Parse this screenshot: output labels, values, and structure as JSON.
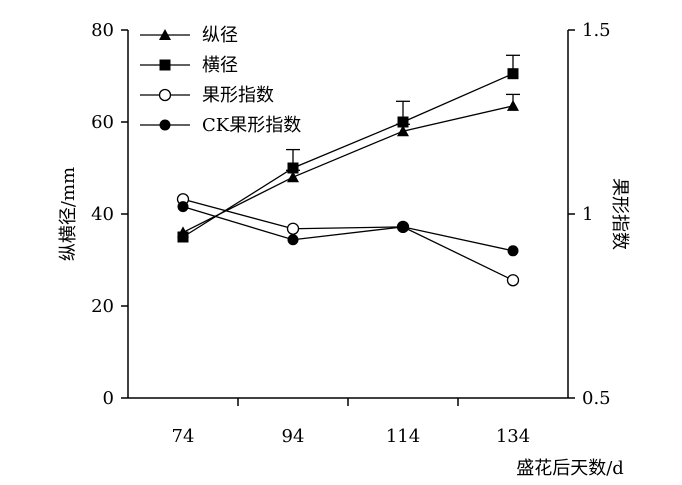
{
  "chart_data": {
    "type": "line",
    "x": [
      74,
      94,
      114,
      134
    ],
    "xlabel": "盛花后天数/d",
    "ylabel_left": "纵横径/mm",
    "ylabel_right": "果形指数",
    "ylim_left": [
      0,
      80
    ],
    "ylim_right": [
      0.5,
      1.5
    ],
    "yticks_left": [
      "0",
      "20",
      "40",
      "60",
      "80"
    ],
    "yticks_right": [
      "0.5",
      "1",
      "1.5"
    ],
    "xticks": [
      "74",
      "94",
      "114",
      "134"
    ],
    "legend_position": "top-left",
    "grid": false,
    "series": [
      {
        "name": "纵径",
        "axis": "left",
        "marker": "filled-triangle",
        "values": [
          36,
          48,
          58,
          63.5
        ],
        "error": [
          0,
          1.5,
          1.5,
          2.5
        ]
      },
      {
        "name": "横径",
        "axis": "left",
        "marker": "filled-square",
        "values": [
          35,
          50,
          60,
          70.5
        ],
        "error": [
          0,
          4,
          4.5,
          4
        ]
      },
      {
        "name": "果形指数",
        "axis": "right",
        "marker": "open-circle",
        "values": [
          1.04,
          0.96,
          0.965,
          0.82
        ],
        "error": [
          0,
          0,
          0,
          0
        ]
      },
      {
        "name": "CK果形指数",
        "axis": "right",
        "marker": "filled-circle",
        "values": [
          1.02,
          0.93,
          0.965,
          0.9
        ],
        "error": [
          0,
          0,
          0,
          0
        ]
      }
    ]
  }
}
